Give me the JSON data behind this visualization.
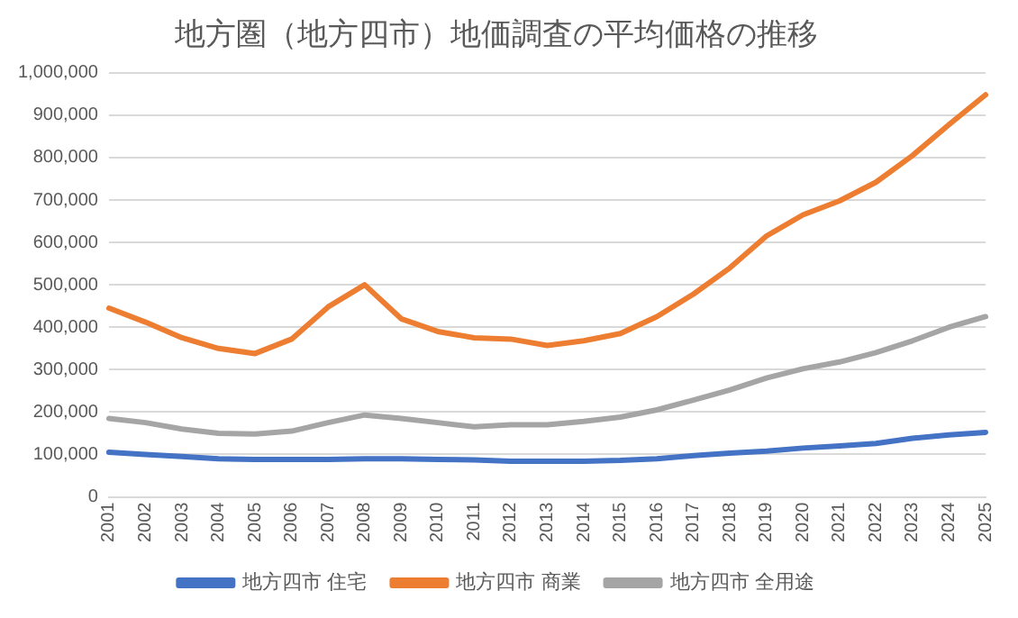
{
  "chart_data": {
    "type": "line",
    "title": "地方圏（地方四市）地価調査の平均価格の推移",
    "categories": [
      "2001",
      "2002",
      "2003",
      "2004",
      "2005",
      "2006",
      "2007",
      "2008",
      "2009",
      "2010",
      "2011",
      "2012",
      "2013",
      "2014",
      "2015",
      "2016",
      "2017",
      "2018",
      "2019",
      "2020",
      "2021",
      "2022",
      "2023",
      "2024",
      "2025"
    ],
    "series": [
      {
        "name": "地方四市 住宅",
        "color": "#4472c4",
        "values": [
          105000,
          100000,
          95000,
          90000,
          88000,
          88000,
          88000,
          90000,
          90000,
          88000,
          87000,
          84000,
          84000,
          84000,
          86000,
          90000,
          97000,
          103000,
          108000,
          115000,
          120000,
          126000,
          138000,
          146000,
          152000
        ]
      },
      {
        "name": "地方四市 商業",
        "color": "#ed7d31",
        "values": [
          445000,
          412000,
          375000,
          350000,
          338000,
          372000,
          448000,
          500000,
          420000,
          390000,
          375000,
          372000,
          357000,
          368000,
          385000,
          425000,
          478000,
          540000,
          615000,
          665000,
          698000,
          742000,
          805000,
          878000,
          948000
        ]
      },
      {
        "name": "地方四市 全用途",
        "color": "#a5a5a5",
        "values": [
          185000,
          175000,
          160000,
          150000,
          148000,
          155000,
          175000,
          193000,
          185000,
          175000,
          165000,
          170000,
          170000,
          178000,
          188000,
          205000,
          228000,
          252000,
          280000,
          302000,
          318000,
          340000,
          368000,
          400000,
          425000
        ]
      }
    ],
    "ylim": [
      0,
      1000000
    ],
    "yticks": [
      {
        "value": 0,
        "label": "0"
      },
      {
        "value": 100000,
        "label": "100,000"
      },
      {
        "value": 200000,
        "label": "200,000"
      },
      {
        "value": 300000,
        "label": "300,000"
      },
      {
        "value": 400000,
        "label": "400,000"
      },
      {
        "value": 500000,
        "label": "500,000"
      },
      {
        "value": 600000,
        "label": "600,000"
      },
      {
        "value": 700000,
        "label": "700,000"
      },
      {
        "value": 800000,
        "label": "800,000"
      },
      {
        "value": 900000,
        "label": "900,000"
      },
      {
        "value": 1000000,
        "label": "1,000,000"
      }
    ],
    "grid": "y",
    "legend": "bottom",
    "marker": "none",
    "line_style": "solid"
  }
}
